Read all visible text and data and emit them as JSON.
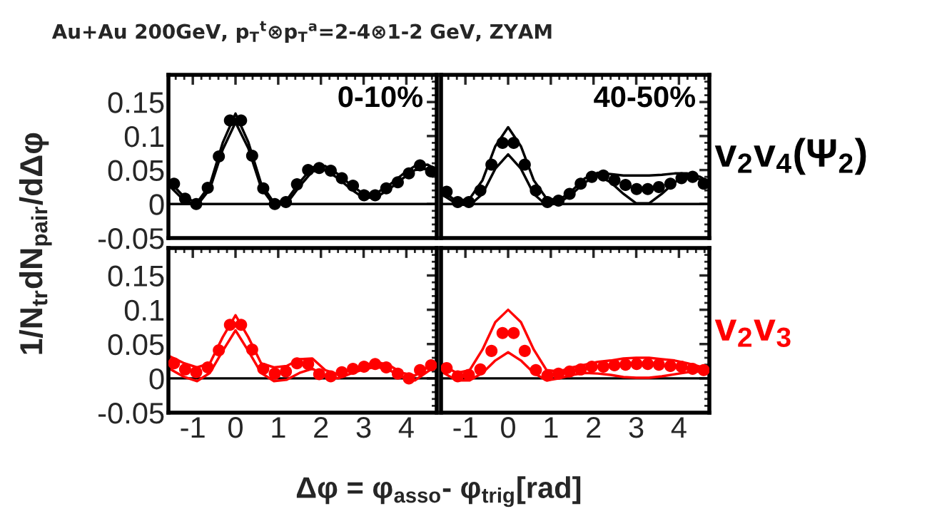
{
  "chart_data": [
    {
      "type": "scatter",
      "title": "Au+Au 200GeV, p$_{T}$$^{t}$⊗p$_{T}$$^{a}$=2-4⊗1-2 GeV, ZYAM",
      "ylabel": "1/N$_{tr}$dN$_{pair}$/dΔφ",
      "x": [
        -1.44,
        -1.18,
        -0.92,
        -0.65,
        -0.39,
        -0.13,
        0.13,
        0.39,
        0.65,
        0.92,
        1.18,
        1.44,
        1.7,
        1.96,
        2.23,
        2.49,
        2.75,
        3.01,
        3.27,
        3.53,
        3.8,
        4.06,
        4.32,
        4.58
      ],
      "series": [
        {
          "marker": "circle",
          "color": "#000000",
          "values": [
            0.03,
            0.008,
            0.0,
            0.024,
            0.07,
            0.123,
            0.123,
            0.071,
            0.023,
            0.0,
            0.003,
            0.029,
            0.05,
            0.053,
            0.049,
            0.038,
            0.027,
            0.013,
            0.013,
            0.023,
            0.032,
            0.045,
            0.057,
            0.048
          ]
        },
        {
          "type": "line",
          "color": "#000000",
          "x": [
            -1.57,
            -1.2,
            -0.9,
            -0.6,
            -0.3,
            0.0,
            0.3,
            0.6,
            0.9,
            1.2,
            1.5,
            1.8,
            2.1,
            2.4,
            2.7,
            3.0,
            3.3,
            3.6,
            3.9,
            4.2,
            4.5,
            4.71
          ],
          "values": [
            0.035,
            0.01,
            0.002,
            0.028,
            0.09,
            0.133,
            0.091,
            0.03,
            0.002,
            0.006,
            0.032,
            0.054,
            0.056,
            0.044,
            0.028,
            0.015,
            0.016,
            0.028,
            0.043,
            0.056,
            0.058,
            0.05
          ]
        },
        {
          "type": "line",
          "color": "#000000",
          "x": [
            -1.57,
            -1.2,
            -0.9,
            -0.6,
            -0.3,
            0.0,
            0.3,
            0.6,
            0.9,
            1.2,
            1.5,
            1.8,
            2.1,
            2.4,
            2.7,
            3.0,
            3.3,
            3.6,
            3.9,
            4.2,
            4.5,
            4.71
          ],
          "values": [
            0.028,
            0.005,
            -0.002,
            0.022,
            0.08,
            0.12,
            0.082,
            0.024,
            -0.002,
            0.001,
            0.026,
            0.048,
            0.05,
            0.038,
            0.022,
            0.009,
            0.01,
            0.022,
            0.037,
            0.05,
            0.052,
            0.044
          ]
        }
      ],
      "annotations": [
        "0-10%"
      ],
      "xlim": [
        -1.571,
        4.712
      ],
      "ylim": [
        -0.05,
        0.19
      ],
      "xticks": [
        -1,
        0,
        1,
        2,
        3,
        4
      ],
      "yticks": [
        -0.05,
        0,
        0.05,
        0.1,
        0.15
      ],
      "ref_lines": [
        {
          "axis": "y",
          "value": 0,
          "color": "#000000"
        }
      ],
      "tick_labels": "y",
      "grid": false,
      "legend": false
    },
    {
      "type": "scatter",
      "x": [
        -1.44,
        -1.18,
        -0.92,
        -0.65,
        -0.39,
        -0.13,
        0.13,
        0.39,
        0.65,
        0.92,
        1.18,
        1.44,
        1.7,
        1.96,
        2.23,
        2.49,
        2.75,
        3.01,
        3.27,
        3.53,
        3.8,
        4.06,
        4.32,
        4.58
      ],
      "series": [
        {
          "marker": "circle",
          "color": "#000000",
          "values": [
            0.018,
            0.003,
            0.003,
            0.02,
            0.058,
            0.09,
            0.09,
            0.058,
            0.02,
            0.003,
            0.005,
            0.015,
            0.03,
            0.04,
            0.042,
            0.035,
            0.028,
            0.022,
            0.022,
            0.025,
            0.03,
            0.038,
            0.04,
            0.03
          ]
        },
        {
          "type": "line",
          "color": "#000000",
          "x": [
            -1.57,
            -1.2,
            -0.9,
            -0.6,
            -0.3,
            0.0,
            0.3,
            0.6,
            0.9,
            1.2,
            1.5,
            1.8,
            2.1,
            2.4,
            2.7,
            3.0,
            3.3,
            3.6,
            3.9,
            4.2,
            4.5,
            4.71
          ],
          "values": [
            0.02,
            0.004,
            0.008,
            0.035,
            0.085,
            0.113,
            0.085,
            0.035,
            0.008,
            0.006,
            0.02,
            0.038,
            0.046,
            0.044,
            0.042,
            0.042,
            0.042,
            0.043,
            0.045,
            0.045,
            0.04,
            0.032
          ]
        },
        {
          "type": "line",
          "color": "#000000",
          "x": [
            -1.57,
            -1.2,
            -0.9,
            -0.6,
            -0.3,
            0.0,
            0.3,
            0.6,
            0.9,
            1.2,
            1.5,
            1.8,
            2.1,
            2.4,
            2.7,
            3.0,
            3.3,
            3.6,
            3.9,
            4.2,
            4.5,
            4.71
          ],
          "values": [
            0.015,
            0.0,
            -0.002,
            0.015,
            0.052,
            0.073,
            0.052,
            0.015,
            -0.002,
            0.002,
            0.015,
            0.032,
            0.042,
            0.032,
            0.015,
            0.001,
            0.001,
            0.015,
            0.032,
            0.042,
            0.036,
            0.028
          ]
        }
      ],
      "annotations": [
        "40-50%",
        "v$_{2}$v$_{4}$(Ψ$_{2}$)"
      ],
      "xlim": [
        -1.571,
        4.712
      ],
      "ylim": [
        -0.05,
        0.19
      ],
      "xticks": [
        -1,
        0,
        1,
        2,
        3,
        4
      ],
      "yticks": [
        -0.05,
        0,
        0.05,
        0.1,
        0.15
      ],
      "ref_lines": [
        {
          "axis": "y",
          "value": 0,
          "color": "#000000"
        }
      ],
      "tick_labels": false,
      "grid": false,
      "legend": false
    },
    {
      "type": "scatter",
      "xlabel": "Δφ = φ$_{asso}$- φ$_{trig}$[rad]",
      "x": [
        -1.44,
        -1.18,
        -0.92,
        -0.65,
        -0.39,
        -0.13,
        0.13,
        0.39,
        0.65,
        0.92,
        1.18,
        1.44,
        1.7,
        1.96,
        2.23,
        2.49,
        2.75,
        3.01,
        3.27,
        3.53,
        3.8,
        4.06,
        4.32,
        4.58
      ],
      "series": [
        {
          "marker": "circle",
          "color": "#ff0000",
          "values": [
            0.022,
            0.013,
            0.009,
            0.016,
            0.041,
            0.078,
            0.078,
            0.042,
            0.014,
            0.007,
            0.01,
            0.022,
            0.021,
            0.006,
            0.003,
            0.009,
            0.014,
            0.017,
            0.021,
            0.016,
            0.007,
            0.0,
            0.012,
            0.019
          ]
        },
        {
          "type": "line",
          "color": "#ff0000",
          "x": [
            -1.57,
            -1.2,
            -0.9,
            -0.6,
            -0.3,
            0.0,
            0.3,
            0.6,
            0.9,
            1.2,
            1.5,
            1.8,
            2.1,
            2.4,
            2.7,
            3.0,
            3.3,
            3.6,
            3.9,
            4.2,
            4.5,
            4.71
          ],
          "values": [
            0.033,
            0.022,
            0.016,
            0.022,
            0.06,
            0.092,
            0.06,
            0.022,
            0.016,
            0.018,
            0.028,
            0.029,
            0.012,
            0.006,
            0.013,
            0.019,
            0.024,
            0.019,
            0.008,
            0.004,
            0.016,
            0.025
          ]
        },
        {
          "type": "line",
          "color": "#ff0000",
          "x": [
            -1.57,
            -1.2,
            -0.9,
            -0.6,
            -0.3,
            0.0,
            0.3,
            0.6,
            0.9,
            1.2,
            1.5,
            1.8,
            2.1,
            2.4,
            2.7,
            3.0,
            3.3,
            3.6,
            3.9,
            4.2,
            4.5,
            4.71
          ],
          "values": [
            0.015,
            0.002,
            -0.004,
            0.008,
            0.04,
            0.07,
            0.04,
            0.008,
            -0.004,
            -0.002,
            0.008,
            0.014,
            0.004,
            0.0,
            0.007,
            0.013,
            0.017,
            0.012,
            0.002,
            -0.003,
            0.01,
            0.018
          ]
        }
      ],
      "xlim": [
        -1.571,
        4.712
      ],
      "ylim": [
        -0.05,
        0.19
      ],
      "xticks": [
        -1,
        0,
        1,
        2,
        3,
        4
      ],
      "yticks": [
        -0.05,
        0,
        0.05,
        0.1,
        0.15
      ],
      "ref_lines": [
        {
          "axis": "y",
          "value": 0,
          "color": "#000000"
        }
      ],
      "grid": false,
      "legend": false
    },
    {
      "type": "scatter",
      "x": [
        -1.44,
        -1.18,
        -0.92,
        -0.65,
        -0.39,
        -0.13,
        0.13,
        0.39,
        0.65,
        0.92,
        1.18,
        1.44,
        1.7,
        1.96,
        2.23,
        2.49,
        2.75,
        3.01,
        3.27,
        3.53,
        3.8,
        4.06,
        4.32,
        4.58
      ],
      "series": [
        {
          "marker": "circle",
          "color": "#ff0000",
          "values": [
            0.015,
            0.003,
            0.005,
            0.013,
            0.04,
            0.066,
            0.066,
            0.04,
            0.012,
            0.004,
            0.007,
            0.01,
            0.013,
            0.017,
            0.017,
            0.019,
            0.02,
            0.021,
            0.021,
            0.02,
            0.018,
            0.017,
            0.014,
            0.012
          ]
        },
        {
          "type": "line",
          "color": "#ff0000",
          "x": [
            -1.57,
            -1.2,
            -0.9,
            -0.6,
            -0.3,
            0.0,
            0.3,
            0.6,
            0.9,
            1.2,
            1.5,
            1.8,
            2.1,
            2.4,
            2.7,
            3.0,
            3.3,
            3.6,
            3.9,
            4.2,
            4.5,
            4.71
          ],
          "values": [
            0.02,
            0.008,
            0.012,
            0.042,
            0.082,
            0.1,
            0.082,
            0.042,
            0.012,
            0.01,
            0.016,
            0.02,
            0.024,
            0.026,
            0.029,
            0.03,
            0.03,
            0.028,
            0.026,
            0.022,
            0.017,
            0.014
          ]
        },
        {
          "type": "line",
          "color": "#ff0000",
          "x": [
            -1.57,
            -1.2,
            -0.9,
            -0.6,
            -0.3,
            0.0,
            0.3,
            0.6,
            0.9,
            1.2,
            1.5,
            1.8,
            2.1,
            2.4,
            2.7,
            3.0,
            3.3,
            3.6,
            3.9,
            4.2,
            4.5,
            4.71
          ],
          "values": [
            0.01,
            -0.003,
            -0.003,
            0.008,
            0.026,
            0.038,
            0.026,
            0.008,
            -0.003,
            0.0,
            0.005,
            0.008,
            0.007,
            0.005,
            0.002,
            0.001,
            0.001,
            0.003,
            0.006,
            0.009,
            0.01,
            0.01
          ]
        }
      ],
      "annotations": [
        "v$_{2}$v$_{3}$"
      ],
      "xlim": [
        -1.571,
        4.712
      ],
      "ylim": [
        -0.05,
        0.19
      ],
      "xticks": [
        -1,
        0,
        1,
        2,
        3,
        4
      ],
      "yticks": [
        -0.05,
        0,
        0.05,
        0.1,
        0.15
      ],
      "ref_lines": [
        {
          "axis": "y",
          "value": 0,
          "color": "#000000"
        }
      ],
      "tick_labels": "x",
      "grid": false,
      "legend": false
    }
  ]
}
